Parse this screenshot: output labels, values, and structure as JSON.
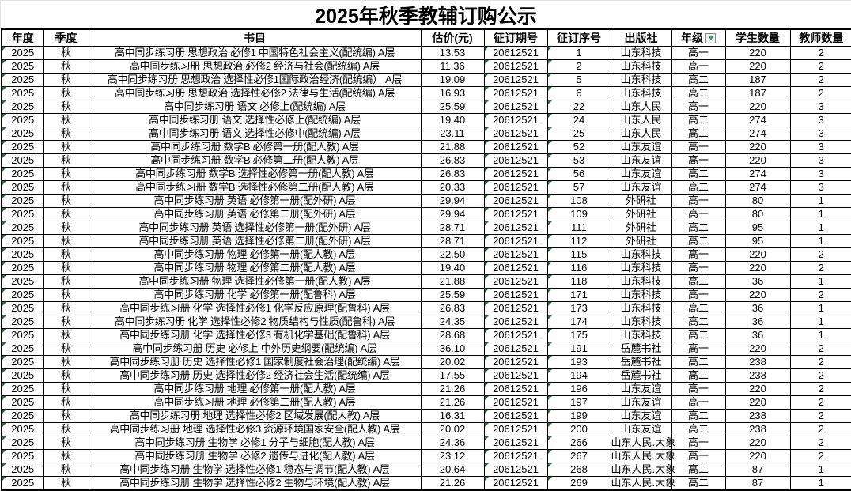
{
  "title": "2025年秋季教辅订购公示",
  "colors": {
    "table_border": "#000000",
    "error_marker_green": "#217346",
    "filter_arrow_green": "#21a366",
    "filter_button_bg": "#f2f2f2"
  },
  "icons": {
    "grade_filter": "filter-dropdown-icon",
    "cell_error_marker": "green-triangle-icon"
  },
  "table": {
    "headers": [
      "年度",
      "季度",
      "书目",
      "估价(元)",
      "征订期号",
      "征订序号",
      "出版社",
      "年级",
      "学生数量",
      "教师数量"
    ],
    "filter_column_index": 7,
    "error_marker_columns": [
      0,
      4,
      5
    ],
    "rows": [
      [
        "2025",
        "秋",
        "高中同步练习册 思想政治 必修1 中国特色社会主义(配统编) A层",
        "13.53",
        "20612521",
        "1",
        "山东科技",
        "高一",
        "220",
        "2"
      ],
      [
        "2025",
        "秋",
        "高中同步练习册 思想政治 必修2 经济与社会(配统编) A层",
        "11.36",
        "20612521",
        "2",
        "山东科技",
        "高一",
        "220",
        "2"
      ],
      [
        "2025",
        "秋",
        "高中同步练习册 思想政治 选择性必修1国际政治经济(配统编） A层",
        "19.09",
        "20612521",
        "5",
        "山东科技",
        "高二",
        "187",
        "2"
      ],
      [
        "2025",
        "秋",
        "高中同步练习册 思想政治 选择性必修2 法律与生活(配统编) A层",
        "16.93",
        "20612521",
        "6",
        "山东科技",
        "高二",
        "187",
        "2"
      ],
      [
        "2025",
        "秋",
        "高中同步练习册 语文 必修上(配统编) A层",
        "25.59",
        "20612521",
        "22",
        "山东人民",
        "高一",
        "220",
        "3"
      ],
      [
        "2025",
        "秋",
        "高中同步练习册 语文 选择性必修上(配统编) A层",
        "19.40",
        "20612521",
        "24",
        "山东人民",
        "高二",
        "274",
        "3"
      ],
      [
        "2025",
        "秋",
        "高中同步练习册 语文 选择性必修中(配统编) A层",
        "23.11",
        "20612521",
        "25",
        "山东人民",
        "高二",
        "274",
        "3"
      ],
      [
        "2025",
        "秋",
        "高中同步练习册 数学B 必修第一册(配人教) A层",
        "21.88",
        "20612521",
        "52",
        "山东友谊",
        "高一",
        "220",
        "3"
      ],
      [
        "2025",
        "秋",
        "高中同步练习册 数学B 必修第二册(配人教) A层",
        "26.83",
        "20612521",
        "53",
        "山东友谊",
        "高一",
        "220",
        "3"
      ],
      [
        "2025",
        "秋",
        "高中同步练习册 数学B 选择性必修第一册(配人教) A层",
        "26.83",
        "20612521",
        "56",
        "山东友谊",
        "高二",
        "274",
        "3"
      ],
      [
        "2025",
        "秋",
        "高中同步练习册 数学B 选择性必修第二册(配人教) A层",
        "20.33",
        "20612521",
        "57",
        "山东友谊",
        "高二",
        "274",
        "3"
      ],
      [
        "2025",
        "秋",
        "高中同步练习册 英语 必修第一册(配外研) A层",
        "29.94",
        "20612521",
        "108",
        "外研社",
        "高一",
        "80",
        "1"
      ],
      [
        "2025",
        "秋",
        "高中同步练习册 英语 必修第二册(配外研) A层",
        "29.94",
        "20612521",
        "109",
        "外研社",
        "高一",
        "80",
        "1"
      ],
      [
        "2025",
        "秋",
        "高中同步练习册 英语 选择性必修第一册(配外研) A层",
        "28.71",
        "20612521",
        "111",
        "外研社",
        "高二",
        "95",
        "1"
      ],
      [
        "2025",
        "秋",
        "高中同步练习册 英语 选择性必修第二册(配外研) A层",
        "28.71",
        "20612521",
        "112",
        "外研社",
        "高二",
        "95",
        "1"
      ],
      [
        "2025",
        "秋",
        "高中同步练习册 物理 必修第一册(配人教) A层",
        "22.50",
        "20612521",
        "115",
        "山东科技",
        "高一",
        "220",
        "2"
      ],
      [
        "2025",
        "秋",
        "高中同步练习册 物理 必修第二册(配人教) A层",
        "19.40",
        "20612521",
        "116",
        "山东科技",
        "高一",
        "220",
        "2"
      ],
      [
        "2025",
        "秋",
        "高中同步练习册 物理 选择性必修第一册(配人教) A层",
        "21.88",
        "20612521",
        "118",
        "山东科技",
        "高二",
        "36",
        "1"
      ],
      [
        "2025",
        "秋",
        "高中同步练习册 化学 必修第一册(配鲁科) A层",
        "25.59",
        "20612521",
        "171",
        "山东科技",
        "高一",
        "220",
        "2"
      ],
      [
        "2025",
        "秋",
        "高中同步练习册 化学 选择性必修1 化学反应原理(配鲁科) A层",
        "26.83",
        "20612521",
        "173",
        "山东科技",
        "高二",
        "36",
        "1"
      ],
      [
        "2025",
        "秋",
        "高中同步练习册 化学 选择性必修2 物质结构与性质(配鲁科) A层",
        "24.35",
        "20612521",
        "174",
        "山东科技",
        "高二",
        "36",
        "1"
      ],
      [
        "2025",
        "秋",
        "高中同步练习册 化学 选择性必修3 有机化学基础(配鲁科) A层",
        "28.68",
        "20612521",
        "175",
        "山东科技",
        "高二",
        "36",
        "1"
      ],
      [
        "2025",
        "秋",
        "高中同步练习册 历史 必修上 中外历史纲要(配统编) A层",
        "36.10",
        "20612521",
        "191",
        "岳麓书社",
        "高一",
        "220",
        "2"
      ],
      [
        "2025",
        "秋",
        "高中同步练习册 历史 选择性必修1 国家制度社会治理(配统编) A层",
        "20.02",
        "20612521",
        "193",
        "岳麓书社",
        "高二",
        "238",
        "2"
      ],
      [
        "2025",
        "秋",
        "高中同步练习册 历史 选择性必修2 经济社会生活(配统编) A层",
        "17.55",
        "20612521",
        "194",
        "岳麓书社",
        "高二",
        "238",
        "2"
      ],
      [
        "2025",
        "秋",
        "高中同步练习册 地理 必修第一册(配人教) A层",
        "21.26",
        "20612521",
        "196",
        "山东友谊",
        "高一",
        "220",
        "2"
      ],
      [
        "2025",
        "秋",
        "高中同步练习册 地理 必修第二册(配人教) A层",
        "21.26",
        "20612521",
        "197",
        "山东友谊",
        "高一",
        "220",
        "2"
      ],
      [
        "2025",
        "秋",
        "高中同步练习册 地理 选择性必修2 区域发展(配人教) A层",
        "16.31",
        "20612521",
        "199",
        "山东友谊",
        "高二",
        "238",
        "2"
      ],
      [
        "2025",
        "秋",
        "高中同步练习册 地理 选择性必修3 资源环境国家安全(配人教) A层",
        "20.02",
        "20612521",
        "200",
        "山东友谊",
        "高二",
        "238",
        "2"
      ],
      [
        "2025",
        "秋",
        "高中同步练习册 生物学 必修1 分子与细胞(配人教) A层",
        "24.36",
        "20612521",
        "266",
        "山东人民.大象",
        "高一",
        "220",
        "2"
      ],
      [
        "2025",
        "秋",
        "高中同步练习册 生物学 必修2 遗传与进化(配人教) A层",
        "23.12",
        "20612521",
        "267",
        "山东人民.大象",
        "高一",
        "220",
        "2"
      ],
      [
        "2025",
        "秋",
        "高中同步练习册 生物学 选择性必修1 稳态与调节(配人教) A层",
        "20.64",
        "20612521",
        "268",
        "山东人民.大象",
        "高二",
        "87",
        "1"
      ],
      [
        "2025",
        "秋",
        "高中同步练习册 生物学 选择性必修2 生物与环境(配人教) A层",
        "21.26",
        "20612521",
        "269",
        "山东人民.大象",
        "高二",
        "87",
        "1"
      ]
    ]
  }
}
